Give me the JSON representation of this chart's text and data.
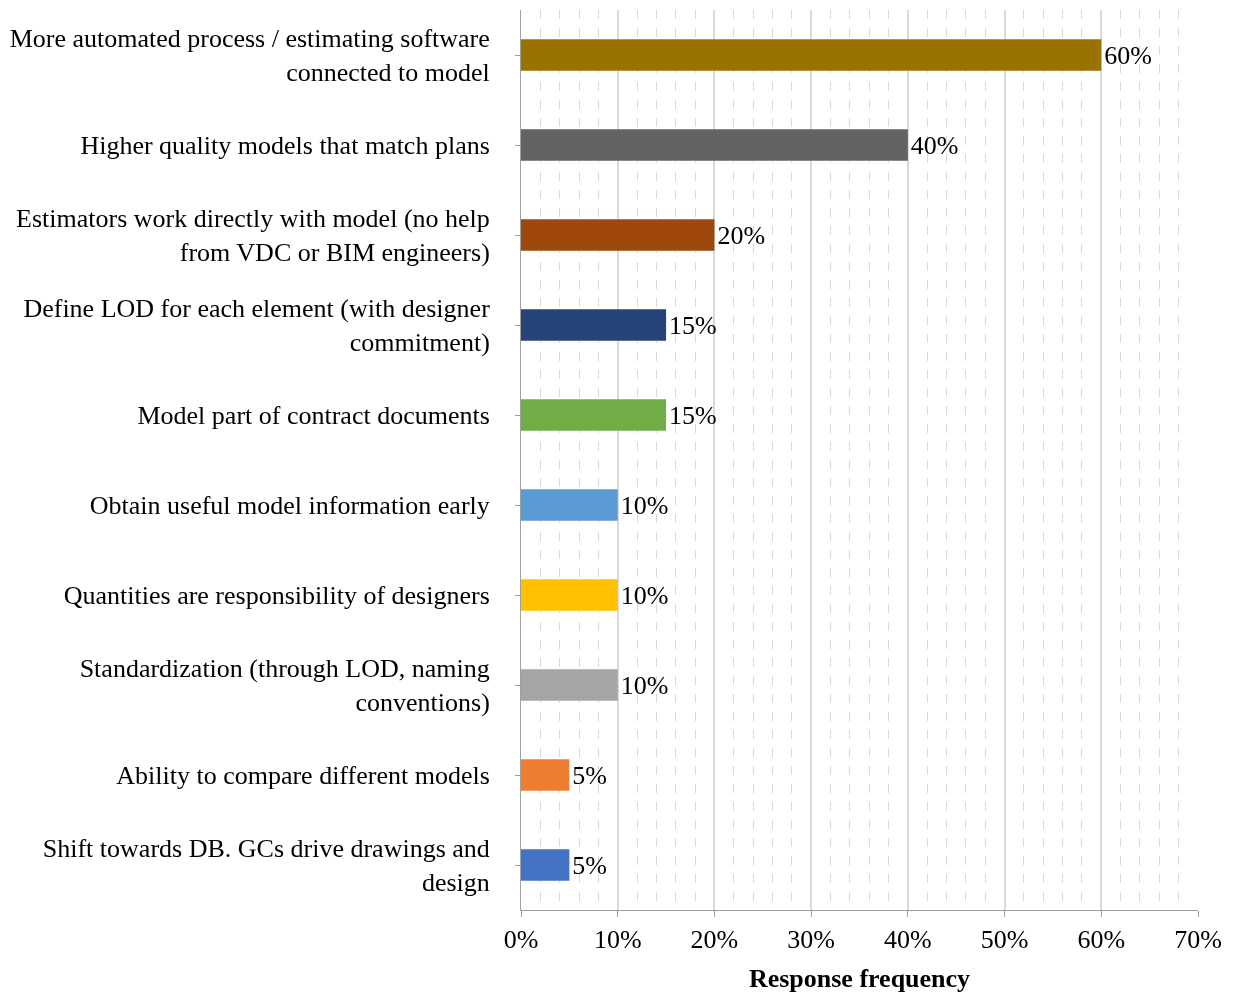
{
  "chart_data": {
    "type": "bar",
    "orientation": "horizontal",
    "xlabel": "Response frequency",
    "categories": [
      "More automated process / estimating software connected to model",
      "Higher quality models that match plans",
      "Estimators work directly with model (no help from VDC or BIM engineers)",
      "Define LOD for each element (with designer commitment)",
      "Model part of contract documents",
      "Obtain useful model information early",
      "Quantities are responsibility of designers",
      "Standardization (through LOD, naming conventions)",
      "Ability to compare different models",
      "Shift towards DB. GCs drive drawings and design"
    ],
    "values": [
      60,
      40,
      20,
      15,
      15,
      10,
      10,
      10,
      5,
      5
    ],
    "colors": [
      "#997300",
      "#636363",
      "#9e480e",
      "#264478",
      "#70ad47",
      "#5b9bd5",
      "#ffc000",
      "#a5a5a5",
      "#ed7d31",
      "#4472c4"
    ],
    "value_labels": [
      "60%",
      "40%",
      "20%",
      "15%",
      "15%",
      "10%",
      "10%",
      "10%",
      "5%",
      "5%"
    ],
    "xlim": [
      0,
      70
    ],
    "xticks": [
      {
        "value": 0,
        "label": "0%"
      },
      {
        "value": 10,
        "label": "10%"
      },
      {
        "value": 20,
        "label": "20%"
      },
      {
        "value": 30,
        "label": "30%"
      },
      {
        "value": 40,
        "label": "40%"
      },
      {
        "value": 50,
        "label": "50%"
      },
      {
        "value": 60,
        "label": "60%"
      },
      {
        "value": 70,
        "label": "70%"
      }
    ],
    "grid": "x",
    "legend": false
  }
}
